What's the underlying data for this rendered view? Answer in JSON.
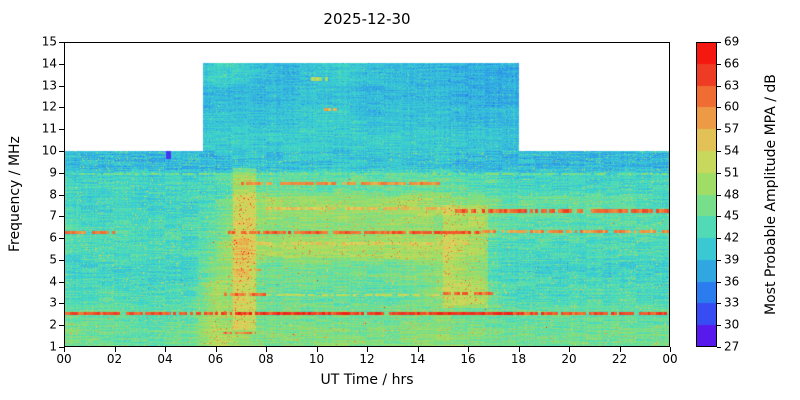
{
  "chart_data": {
    "type": "heatmap",
    "title": "2025-12-30",
    "xlabel": "UT Time / hrs",
    "ylabel": "Frequency / MHz",
    "colorbar_label": "Most Probable Amplitude MPA / dB",
    "x_range": [
      0,
      24
    ],
    "y_range": [
      1,
      15
    ],
    "value_range": [
      27,
      69
    ],
    "x_tick_values": [
      0,
      2,
      4,
      6,
      8,
      10,
      12,
      14,
      16,
      18,
      20,
      22,
      24
    ],
    "x_tick_labels": [
      "00",
      "02",
      "04",
      "06",
      "08",
      "10",
      "12",
      "14",
      "16",
      "18",
      "20",
      "22",
      "00"
    ],
    "y_tick_values": [
      1,
      2,
      3,
      4,
      5,
      6,
      7,
      8,
      9,
      10,
      11,
      12,
      13,
      14,
      15
    ],
    "colorbar_tick_values": [
      27,
      30,
      33,
      36,
      39,
      42,
      45,
      48,
      51,
      54,
      57,
      60,
      63,
      66,
      69
    ],
    "no_data_color": "#ffffff",
    "day_block": {
      "t0": 5.5,
      "t1": 18,
      "f0": 10,
      "f1": 14
    },
    "base_band": {
      "f0": 1,
      "f1": 10
    },
    "grid": {
      "hours": [
        0,
        1,
        2,
        3,
        4,
        5,
        6,
        7,
        8,
        9,
        10,
        11,
        12,
        13,
        14,
        15,
        16,
        17,
        18,
        19,
        20,
        21,
        22,
        23,
        24
      ],
      "freq_centers": [
        1.5,
        2.5,
        3.5,
        4.5,
        5.5,
        6.5,
        7.5,
        8.5,
        9.5,
        10.5,
        11.5,
        12.5,
        13.5
      ],
      "values_dB": [
        [
          46,
          46,
          45,
          45,
          45,
          46,
          51,
          49,
          47,
          47,
          47,
          47,
          47,
          47,
          48,
          48,
          47,
          46,
          46,
          46,
          46,
          46,
          46,
          46,
          46
        ],
        [
          45,
          45,
          45,
          44,
          44,
          45,
          50,
          48,
          46,
          46,
          46,
          46,
          46,
          46,
          47,
          47,
          46,
          45,
          45,
          45,
          45,
          45,
          45,
          45,
          45
        ],
        [
          43,
          43,
          43,
          43,
          43,
          43,
          50,
          48,
          45,
          45,
          45,
          45,
          45,
          45,
          46,
          48,
          48,
          45,
          43,
          43,
          43,
          43,
          43,
          43,
          43
        ],
        [
          42,
          42,
          42,
          42,
          42,
          42,
          47,
          50,
          46,
          46,
          46,
          46,
          46,
          46,
          47,
          48,
          45,
          43,
          42,
          42,
          42,
          42,
          42,
          42,
          42
        ],
        [
          43,
          43,
          43,
          43,
          43,
          43,
          46,
          51,
          50,
          50,
          50,
          50,
          50,
          50,
          51,
          50,
          46,
          44,
          43,
          43,
          43,
          43,
          43,
          43,
          43
        ],
        [
          44,
          43,
          43,
          43,
          43,
          43,
          45,
          49,
          48,
          48,
          48,
          48,
          48,
          49,
          49,
          48,
          46,
          45,
          44,
          44,
          44,
          44,
          44,
          44,
          44
        ],
        [
          42,
          42,
          42,
          42,
          42,
          42,
          44,
          48,
          49,
          49,
          49,
          49,
          49,
          49,
          50,
          49,
          47,
          46,
          45,
          45,
          45,
          45,
          45,
          44,
          42
        ],
        [
          42,
          42,
          42,
          42,
          42,
          42,
          43,
          45,
          45,
          45,
          45,
          45,
          45,
          45,
          45,
          45,
          44,
          43,
          42,
          42,
          42,
          42,
          42,
          42,
          42
        ],
        [
          39,
          39,
          39,
          39,
          39,
          39,
          39,
          40,
          40,
          40,
          40,
          40,
          40,
          40,
          40,
          40,
          39,
          39,
          39,
          39,
          39,
          39,
          39,
          39,
          39
        ],
        [
          40,
          40,
          40,
          40,
          40,
          40,
          41,
          41,
          41,
          41,
          41,
          41,
          41,
          41,
          41,
          41,
          40,
          40,
          40,
          40,
          40,
          40,
          40,
          40,
          40
        ],
        [
          39,
          39,
          39,
          39,
          39,
          39,
          40,
          40,
          40,
          40,
          41,
          41,
          40,
          40,
          40,
          40,
          39,
          39,
          39,
          39,
          39,
          39,
          39,
          39,
          39
        ],
        [
          38,
          38,
          38,
          38,
          38,
          38,
          39,
          39,
          39,
          39,
          40,
          40,
          39,
          39,
          39,
          39,
          38,
          38,
          38,
          38,
          38,
          38,
          38,
          38,
          38
        ],
        [
          38,
          38,
          38,
          38,
          38,
          38,
          42,
          41,
          39,
          39,
          40,
          41,
          40,
          39,
          39,
          39,
          38,
          38,
          38,
          38,
          38,
          38,
          38,
          38,
          38
        ]
      ]
    },
    "lines": [
      {
        "f": 2.55,
        "hw": 0.07,
        "t0": 0,
        "t1": 24,
        "dB": 63,
        "mode": "max"
      },
      {
        "f": 2.55,
        "hw": 0.07,
        "t0": 6,
        "t1": 18,
        "dB": 65,
        "mode": "max"
      },
      {
        "f": 1.65,
        "hw": 0.06,
        "t0": 6.3,
        "t1": 7.6,
        "dB": 60,
        "mode": "max"
      },
      {
        "f": 3.4,
        "hw": 0.06,
        "t0": 6,
        "t1": 8,
        "dB": 61,
        "mode": "max"
      },
      {
        "f": 3.4,
        "hw": 0.05,
        "t0": 8,
        "t1": 15,
        "dB": 52,
        "mode": "max"
      },
      {
        "f": 3.45,
        "hw": 0.06,
        "t0": 15,
        "t1": 17,
        "dB": 61,
        "mode": "max"
      },
      {
        "f": 6.25,
        "hw": 0.07,
        "t0": 0,
        "t1": 2,
        "dB": 60,
        "mode": "max"
      },
      {
        "f": 6.25,
        "hw": 0.07,
        "t0": 6.5,
        "t1": 16.5,
        "dB": 62,
        "mode": "max"
      },
      {
        "f": 6.3,
        "hw": 0.06,
        "t0": 16.5,
        "t1": 24,
        "dB": 59,
        "mode": "max"
      },
      {
        "f": 7.25,
        "hw": 0.1,
        "t0": 15.5,
        "t1": 24,
        "dB": 62,
        "mode": "max"
      },
      {
        "f": 7.35,
        "hw": 0.07,
        "t0": 8,
        "t1": 15.5,
        "dB": 55,
        "mode": "max"
      },
      {
        "f": 8.5,
        "hw": 0.06,
        "t0": 7,
        "t1": 15,
        "dB": 59,
        "mode": "max"
      },
      {
        "f": 5.75,
        "hw": 0.05,
        "t0": 7,
        "t1": 16,
        "dB": 54,
        "mode": "max"
      },
      {
        "f": 4.55,
        "hw": 0.05,
        "t0": 6.8,
        "t1": 7.8,
        "dB": 58,
        "mode": "max"
      },
      {
        "f": 8.95,
        "hw": 0.05,
        "t0": 0,
        "t1": 24,
        "dB": 46,
        "mode": "max"
      },
      {
        "f": 11.9,
        "hw": 0.07,
        "t0": 10.3,
        "t1": 10.8,
        "dB": 57,
        "mode": "max"
      },
      {
        "f": 13.3,
        "hw": 0.1,
        "t0": 9.8,
        "t1": 10.6,
        "dB": 50,
        "mode": "max"
      },
      {
        "f": 9.95,
        "hw": 0.3,
        "t0": 4.05,
        "t1": 4.25,
        "dB": 30,
        "mode": "set"
      }
    ],
    "patches": [
      {
        "t0": 6.7,
        "t1": 7.6,
        "f0": 1.8,
        "f1": 9.2,
        "add": 5
      },
      {
        "t0": 15.0,
        "t1": 16.8,
        "f0": 2.8,
        "f1": 7.5,
        "add": 4
      }
    ],
    "colormap": [
      {
        "v": 27,
        "c": "#6A00E8"
      },
      {
        "v": 30,
        "c": "#4733F2"
      },
      {
        "v": 33,
        "c": "#2965F5"
      },
      {
        "v": 36,
        "c": "#2D93E8"
      },
      {
        "v": 39,
        "c": "#35BBDD"
      },
      {
        "v": 42,
        "c": "#3FD6C8"
      },
      {
        "v": 45,
        "c": "#62DFA4"
      },
      {
        "v": 48,
        "c": "#8CDE73"
      },
      {
        "v": 51,
        "c": "#B5DC5A"
      },
      {
        "v": 54,
        "c": "#DCD45E"
      },
      {
        "v": 57,
        "c": "#E9B04F"
      },
      {
        "v": 60,
        "c": "#EF853C"
      },
      {
        "v": 63,
        "c": "#F0542B"
      },
      {
        "v": 66,
        "c": "#EC231B"
      },
      {
        "v": 69,
        "c": "#FF0E06"
      }
    ]
  }
}
